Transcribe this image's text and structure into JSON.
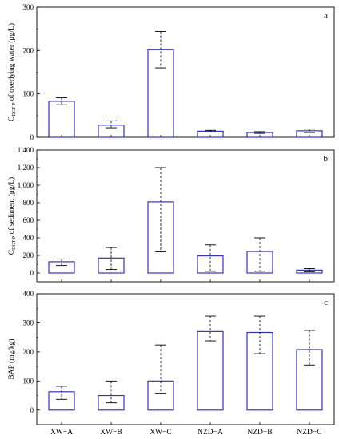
{
  "chart_data": [
    {
      "type": "bar",
      "panel": "a",
      "ylabel": {
        "main": "C",
        "sub": "DGT-P",
        "rest": " of overlying water (μg/L)"
      },
      "ylim": [
        0,
        300
      ],
      "yticks": [
        0,
        100,
        200,
        300
      ],
      "yticklabels": [
        "0",
        "100",
        "200",
        "300"
      ],
      "categories": [
        "XW−A",
        "XW−B",
        "XW−C",
        "NZD−A",
        "NZD−B",
        "NZD−C"
      ],
      "values": [
        83,
        28,
        202,
        14,
        11,
        15
      ],
      "error_low": [
        75,
        22,
        160,
        12,
        9,
        11
      ],
      "error_high": [
        91,
        38,
        244,
        16,
        13,
        19
      ],
      "grid": false
    },
    {
      "type": "bar",
      "panel": "b",
      "ylabel": {
        "main": "C",
        "sub": "DGT-P",
        "rest": " of sediment (μg/L)"
      },
      "ylim": [
        -100,
        1400
      ],
      "yticks": [
        0,
        200,
        400,
        600,
        800,
        1000,
        1200,
        1400
      ],
      "yticklabels": [
        "0",
        "200",
        "400",
        "600",
        "800",
        "1,000",
        "1,200",
        "1,400"
      ],
      "categories": [
        "XW−A",
        "XW−B",
        "XW−C",
        "NZD−A",
        "NZD−B",
        "NZD−C"
      ],
      "values": [
        128,
        170,
        810,
        195,
        245,
        33
      ],
      "error_low": [
        85,
        40,
        240,
        20,
        20,
        15
      ],
      "error_high": [
        160,
        290,
        1200,
        320,
        400,
        50
      ],
      "grid": false
    },
    {
      "type": "bar",
      "panel": "c",
      "ylabel": {
        "main": "BAP (mg/kg)",
        "sub": "",
        "rest": ""
      },
      "ylim": [
        -50,
        400
      ],
      "yticks": [
        0,
        100,
        200,
        300,
        400
      ],
      "yticklabels": [
        "0",
        "100",
        "200",
        "300",
        "400"
      ],
      "categories": [
        "XW−A",
        "XW−B",
        "XW−C",
        "NZD−A",
        "NZD−B",
        "NZD−C"
      ],
      "values": [
        63,
        50,
        100,
        270,
        267,
        208
      ],
      "error_low": [
        37,
        25,
        58,
        238,
        194,
        155
      ],
      "error_high": [
        82,
        100,
        224,
        323,
        323,
        274
      ],
      "grid": false
    }
  ],
  "colors": {
    "bar_edge": "#3434c8",
    "bar_fill": "#ffffff",
    "axis": "#000000"
  }
}
